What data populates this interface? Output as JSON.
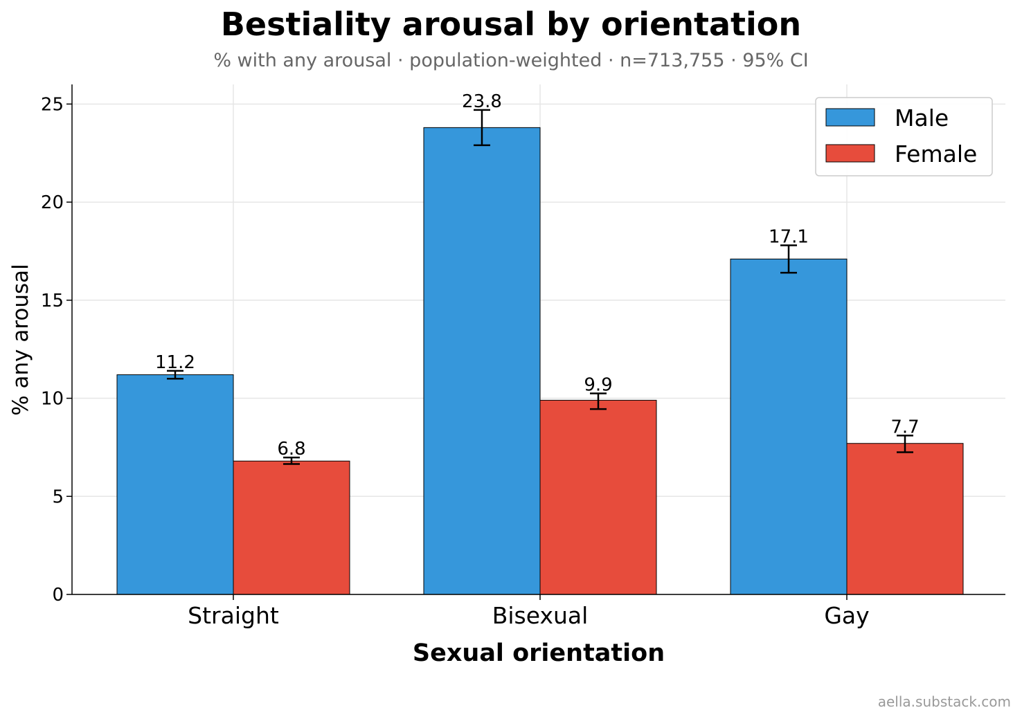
{
  "title": "Bestiality arousal by orientation",
  "subtitle": "% with any arousal · population-weighted · n=713,755 · 95% CI",
  "credit": "aella.substack.com",
  "colors": {
    "male": "#3697db",
    "female": "#e74c3c"
  },
  "chart_data": {
    "type": "bar",
    "title": "Bestiality arousal by orientation",
    "xlabel": "Sexual orientation",
    "ylabel": "% any arousal",
    "categories": [
      "Straight",
      "Bisexual",
      "Gay"
    ],
    "ylim": [
      0,
      26
    ],
    "yticks": [
      0,
      5,
      10,
      15,
      20,
      25
    ],
    "grid": true,
    "legend_position": "top-right",
    "series": [
      {
        "name": "Male",
        "color": "#3697db",
        "values": [
          11.2,
          23.8,
          17.1
        ],
        "ci_low": [
          11.0,
          22.9,
          16.4
        ],
        "ci_high": [
          11.4,
          24.7,
          17.8
        ],
        "labels": [
          "11.2",
          "23.8",
          "17.1"
        ]
      },
      {
        "name": "Female",
        "color": "#e74c3c",
        "values": [
          6.8,
          9.9,
          7.7
        ],
        "ci_low": [
          6.65,
          9.45,
          7.25
        ],
        "ci_high": [
          6.98,
          10.25,
          8.1
        ],
        "labels": [
          "6.8",
          "9.9",
          "7.7"
        ]
      }
    ]
  }
}
